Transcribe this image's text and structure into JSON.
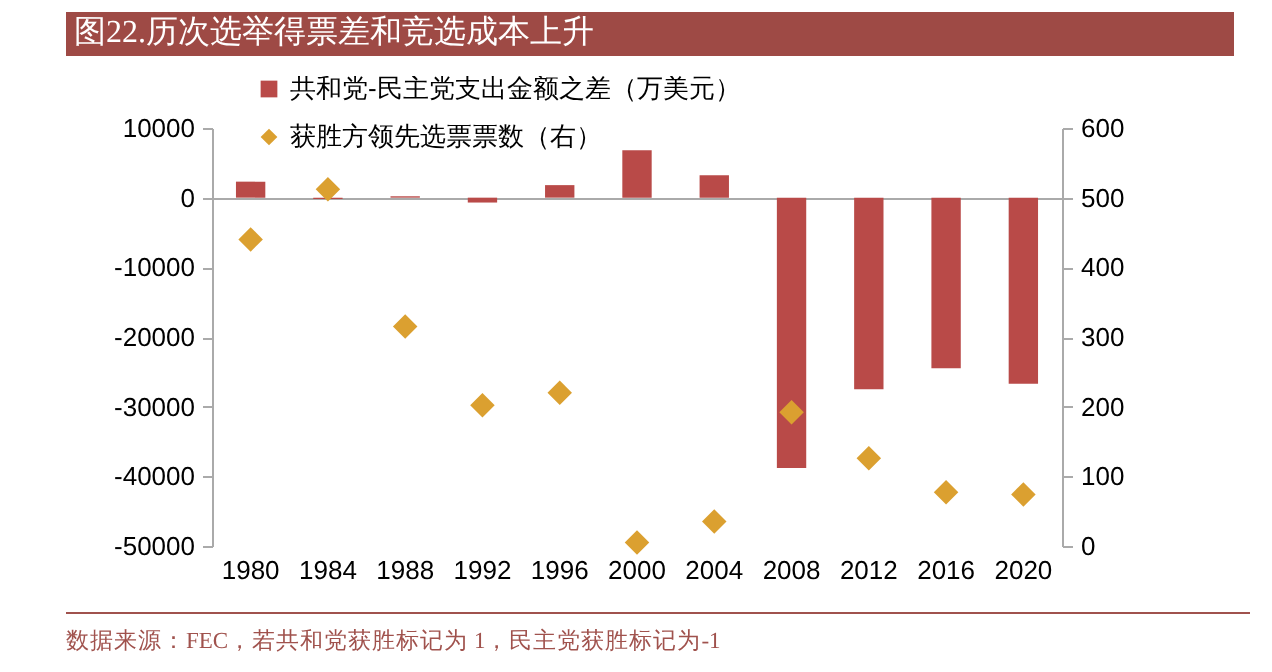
{
  "chart_data": {
    "type": "bar",
    "title": "图22.历次选举得票差和竞选成本上升",
    "categories": [
      "1980",
      "1984",
      "1988",
      "1992",
      "1996",
      "2000",
      "2004",
      "2008",
      "2012",
      "2016",
      "2020"
    ],
    "series": [
      {
        "name": "共和党-民主党支出金额之差（万美元）",
        "color": "#b94a48",
        "values": [
          2300,
          -200,
          200,
          -700,
          1800,
          6800,
          3200,
          -38800,
          -27500,
          -24500,
          -26700
        ]
      },
      {
        "name": "获胜方领先选票票数（右）",
        "type": "scatter",
        "axis": "y2",
        "color": "#dba030",
        "values": [
          440,
          512,
          315,
          202,
          220,
          5,
          35,
          192,
          126,
          77,
          74
        ]
      }
    ],
    "ylim": [
      -50000,
      10000
    ],
    "yticks": [
      -50000,
      -40000,
      -30000,
      -20000,
      -10000,
      0,
      10000
    ],
    "y2lim": [
      0,
      600
    ],
    "y2ticks": [
      0,
      100,
      200,
      300,
      400,
      500,
      600
    ],
    "legend": "top left",
    "marker": "diamond",
    "annotations": [
      "数据来源：FEC，若共和党获胜标记为 1，民主党获胜标记为-1"
    ]
  }
}
